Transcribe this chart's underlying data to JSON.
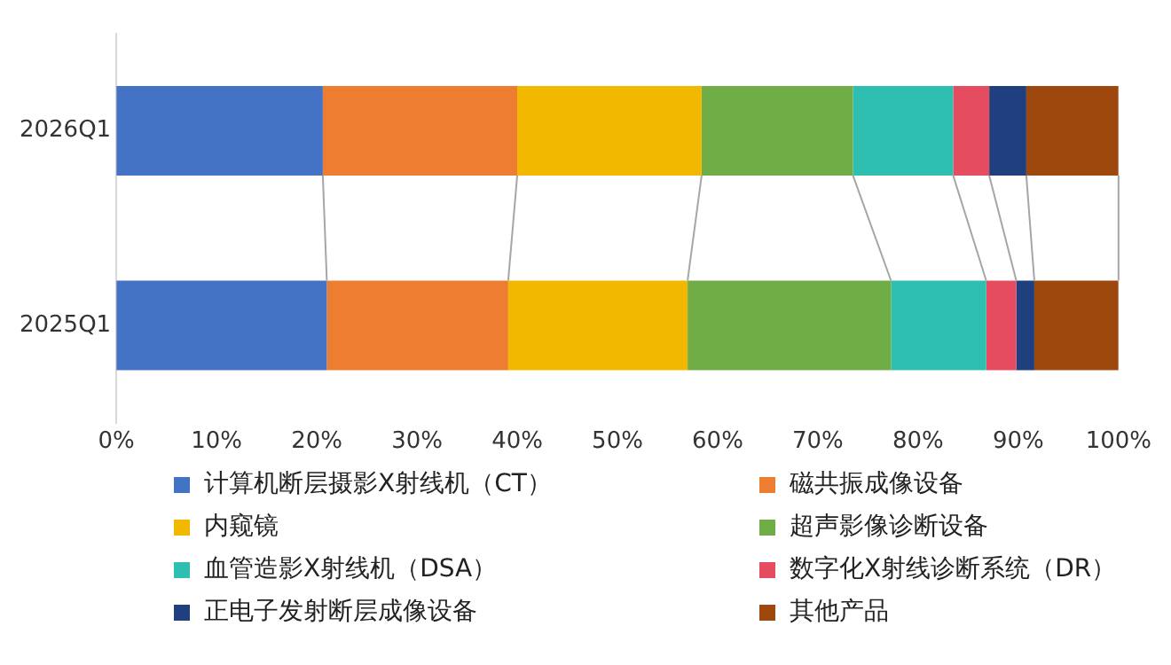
{
  "chart_data": {
    "type": "bar",
    "orientation": "horizontal",
    "stacked": true,
    "categories": [
      "2026Q1",
      "2025Q1"
    ],
    "xlim": [
      0,
      100
    ],
    "xticks": [
      {
        "value": 0,
        "label": "0%"
      },
      {
        "value": 10,
        "label": "10%"
      },
      {
        "value": 20,
        "label": "20%"
      },
      {
        "value": 30,
        "label": "30%"
      },
      {
        "value": 40,
        "label": "40%"
      },
      {
        "value": 50,
        "label": "50%"
      },
      {
        "value": 60,
        "label": "60%"
      },
      {
        "value": 70,
        "label": "70%"
      },
      {
        "value": 80,
        "label": "80%"
      },
      {
        "value": 90,
        "label": "90%"
      },
      {
        "value": 100,
        "label": "100%"
      }
    ],
    "grid": false,
    "legend": "bottom",
    "series": [
      {
        "name": "计算机断层摄影X射线机（CT）",
        "color": "#4472c4",
        "values": [
          20.6,
          21.0
        ]
      },
      {
        "name": "磁共振成像设备",
        "color": "#ed7d31",
        "values": [
          19.4,
          18.1
        ]
      },
      {
        "name": "内窥镜",
        "color": "#f2b800",
        "values": [
          18.4,
          17.9
        ]
      },
      {
        "name": "超声影像诊断设备",
        "color": "#70ad47",
        "values": [
          15.1,
          20.3
        ]
      },
      {
        "name": "血管造影X射线机（DSA）",
        "color": "#2fbfb0",
        "values": [
          10.0,
          9.5
        ]
      },
      {
        "name": "数字化X射线诊断系统（DR）",
        "color": "#e64c5f",
        "values": [
          3.6,
          3.0
        ]
      },
      {
        "name": "正电子发射断层成像设备",
        "color": "#1f3f7f",
        "values": [
          3.7,
          1.8
        ]
      },
      {
        "name": "其他产品",
        "color": "#9e480e",
        "values": [
          9.2,
          8.4
        ]
      }
    ]
  }
}
